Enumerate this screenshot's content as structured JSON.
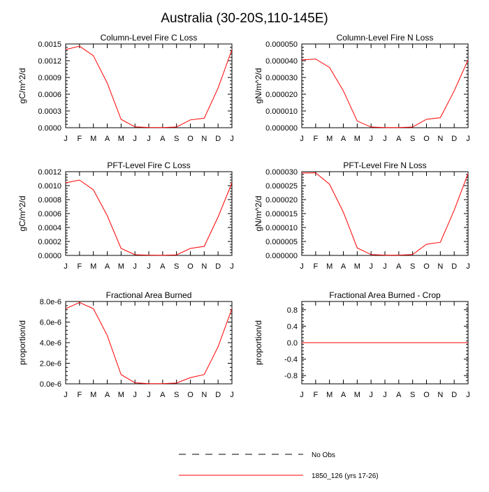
{
  "figure": {
    "title": "Australia (30-20S,110-145E)"
  },
  "months": [
    "J",
    "F",
    "M",
    "A",
    "M",
    "J",
    "J",
    "A",
    "S",
    "O",
    "N",
    "D",
    "J"
  ],
  "series_color": "#ff0000",
  "legend": {
    "entries": [
      {
        "label": "No Obs",
        "style": "dashed",
        "color": "#000000"
      },
      {
        "label": "1850_126 (yrs 17-26)",
        "style": "solid",
        "color": "#ff0000"
      }
    ]
  },
  "chart_data": [
    {
      "type": "line",
      "title": "Column-Level Fire C Loss",
      "ylabel": "gC/m^2/d",
      "x": [
        "J",
        "F",
        "M",
        "A",
        "M",
        "J",
        "J",
        "A",
        "S",
        "O",
        "N",
        "D",
        "J"
      ],
      "ylim": [
        0,
        0.0015
      ],
      "yticks": [
        "0.0000",
        "0.0003",
        "0.0006",
        "0.0009",
        "0.0012",
        "0.0015"
      ],
      "ytick_values": [
        0,
        0.0003,
        0.0006,
        0.0009,
        0.0012,
        0.0015
      ],
      "series": [
        {
          "name": "1850_126 (yrs 17-26)",
          "values": [
            0.0014,
            0.00146,
            0.00129,
            0.0008,
            0.00015,
            1.5e-05,
            5e-06,
            3e-06,
            1.2e-05,
            0.00014,
            0.00017,
            0.00071,
            0.0014
          ]
        }
      ]
    },
    {
      "type": "line",
      "title": "Column-Level Fire N Loss",
      "ylabel": "gN/m^2/d",
      "x": [
        "J",
        "F",
        "M",
        "A",
        "M",
        "J",
        "J",
        "A",
        "S",
        "O",
        "N",
        "D",
        "J"
      ],
      "ylim": [
        0,
        5e-05
      ],
      "yticks": [
        "0.000000",
        "0.000010",
        "0.000020",
        "0.000030",
        "0.000040",
        "0.000050"
      ],
      "ytick_values": [
        0,
        1e-05,
        2e-05,
        3e-05,
        4e-05,
        5e-05
      ],
      "series": [
        {
          "name": "1850_126 (yrs 17-26)",
          "values": [
            4.05e-05,
            4.1e-05,
            3.6e-05,
            2.2e-05,
            4e-06,
            4e-07,
            1e-07,
            1e-07,
            4e-07,
            5e-06,
            6e-06,
            2.2e-05,
            4.05e-05
          ]
        }
      ]
    },
    {
      "type": "line",
      "title": "PFT-Level Fire C Loss",
      "ylabel": "gC/m^2/d",
      "x": [
        "J",
        "F",
        "M",
        "A",
        "M",
        "J",
        "J",
        "A",
        "S",
        "O",
        "N",
        "D",
        "J"
      ],
      "ylim": [
        0,
        0.0012
      ],
      "yticks": [
        "0.0000",
        "0.0002",
        "0.0004",
        "0.0006",
        "0.0008",
        "0.0010",
        "0.0012"
      ],
      "ytick_values": [
        0,
        0.0002,
        0.0004,
        0.0006,
        0.0008,
        0.001,
        0.0012
      ],
      "series": [
        {
          "name": "1850_126 (yrs 17-26)",
          "values": [
            0.00104,
            0.00108,
            0.00094,
            0.00057,
            0.0001,
            1e-05,
            4e-06,
            2e-06,
            8e-06,
            0.0001,
            0.00013,
            0.00055,
            0.00104
          ]
        }
      ]
    },
    {
      "type": "line",
      "title": "PFT-Level Fire N Loss",
      "ylabel": "gN/m^2/d",
      "x": [
        "J",
        "F",
        "M",
        "A",
        "M",
        "J",
        "J",
        "A",
        "S",
        "O",
        "N",
        "D",
        "J"
      ],
      "ylim": [
        0,
        3e-05
      ],
      "yticks": [
        "0.000000",
        "0.000005",
        "0.000010",
        "0.000015",
        "0.000020",
        "0.000025",
        "0.000030"
      ],
      "ytick_values": [
        0,
        5e-06,
        1e-05,
        1.5e-05,
        2e-05,
        2.5e-05,
        3e-05
      ],
      "series": [
        {
          "name": "1850_126 (yrs 17-26)",
          "values": [
            2.95e-05,
            2.96e-05,
            2.55e-05,
            1.55e-05,
            2.7e-06,
            3e-07,
            1e-07,
            1e-07,
            3e-07,
            4e-06,
            4.7e-06,
            1.62e-05,
            2.93e-05
          ]
        }
      ]
    },
    {
      "type": "line",
      "title": "Fractional Area Burned",
      "ylabel": "proportion/d",
      "x": [
        "J",
        "F",
        "M",
        "A",
        "M",
        "J",
        "J",
        "A",
        "S",
        "O",
        "N",
        "D",
        "J"
      ],
      "ylim": [
        0,
        8e-06
      ],
      "yticks": [
        "0.0e-6",
        "2.0e-6",
        "4.0e-6",
        "6.0e-6",
        "8.0e-6"
      ],
      "ytick_values": [
        0,
        2e-06,
        4e-06,
        6e-06,
        8e-06
      ],
      "series": [
        {
          "name": "1850_126 (yrs 17-26)",
          "values": [
            7.3e-06,
            7.9e-06,
            7.3e-06,
            4.7e-06,
            9e-07,
            1e-07,
            2e-08,
            2e-08,
            8e-08,
            6e-07,
            9e-07,
            3.6e-06,
            7.3e-06
          ]
        }
      ]
    },
    {
      "type": "line",
      "title": "Fractional Area Burned - Crop",
      "ylabel": "proportion/d",
      "x": [
        "J",
        "F",
        "M",
        "A",
        "M",
        "J",
        "J",
        "A",
        "S",
        "O",
        "N",
        "D",
        "J"
      ],
      "ylim": [
        -1,
        1
      ],
      "yticks": [
        "-0.8",
        "-0.4",
        "0.0",
        "0.4",
        "0.8"
      ],
      "ytick_values": [
        -0.8,
        -0.4,
        0,
        0.4,
        0.8
      ],
      "series": [
        {
          "name": "1850_126 (yrs 17-26)",
          "values": [
            0,
            0,
            0,
            0,
            0,
            0,
            0,
            0,
            0,
            0,
            0,
            0,
            0
          ]
        }
      ]
    }
  ]
}
